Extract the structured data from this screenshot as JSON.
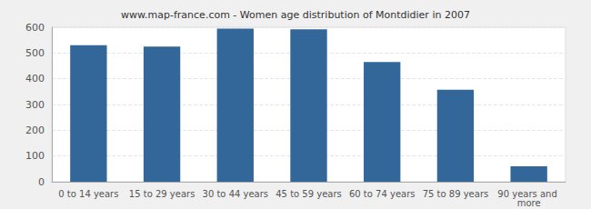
{
  "chart_data": {
    "type": "bar",
    "title": "www.map-france.com - Women age distribution of Montdidier in 2007",
    "categories": [
      "0 to 14 years",
      "15 to 29 years",
      "30 to 44 years",
      "45 to 59 years",
      "60 to 74 years",
      "75 to 89 years",
      "90 years and more"
    ],
    "values": [
      530,
      525,
      595,
      592,
      465,
      357,
      60
    ],
    "color": "#336699",
    "ylim": [
      0,
      600
    ],
    "yticks": [
      0,
      100,
      200,
      300,
      400,
      500,
      600
    ],
    "grid": true
  }
}
